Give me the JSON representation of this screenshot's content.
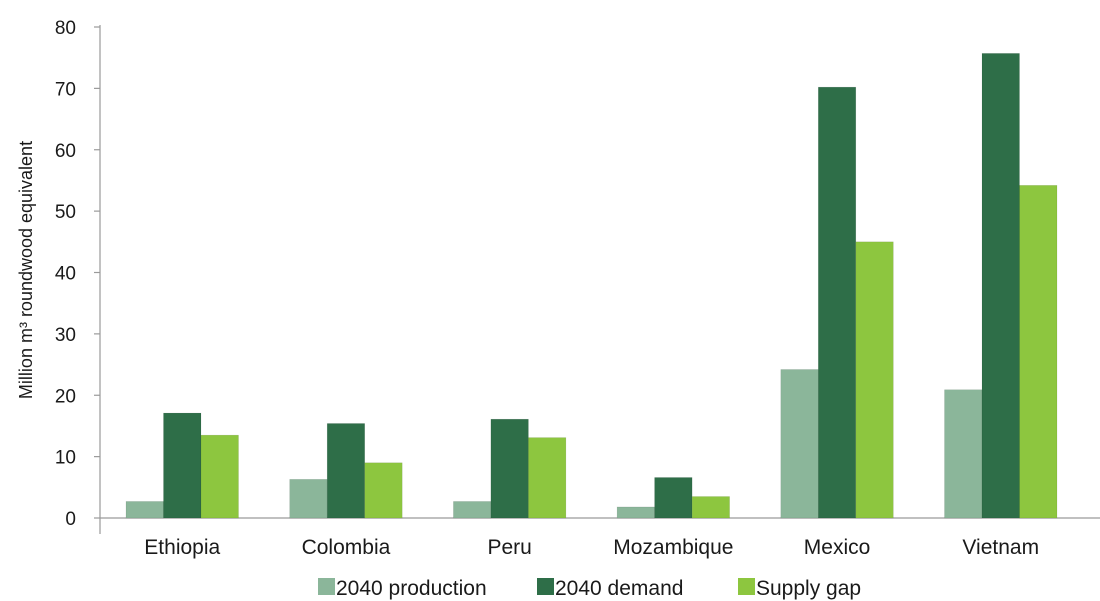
{
  "chart_data": {
    "type": "bar",
    "title": "",
    "xlabel": "",
    "ylabel": "Million m³ roundwood equivalent",
    "ylim": [
      0,
      80
    ],
    "yticks": [
      0,
      10,
      20,
      30,
      40,
      50,
      60,
      70,
      80
    ],
    "grid": false,
    "legend_position": "bottom",
    "categories": [
      "Ethiopia",
      "Colombia",
      "Peru",
      "Mozambique",
      "Mexico",
      "Vietnam"
    ],
    "series": [
      {
        "name": "2040 production",
        "color": "#8bb69a",
        "values": [
          2.7,
          6.3,
          2.7,
          1.8,
          24.2,
          20.9
        ]
      },
      {
        "name": "2040 demand",
        "color": "#2e6e48",
        "values": [
          17.1,
          15.4,
          16.1,
          6.6,
          70.2,
          75.7
        ]
      },
      {
        "name": "Supply gap",
        "color": "#8dc63f",
        "values": [
          13.5,
          9.0,
          13.1,
          3.5,
          45.0,
          54.2
        ]
      }
    ]
  }
}
